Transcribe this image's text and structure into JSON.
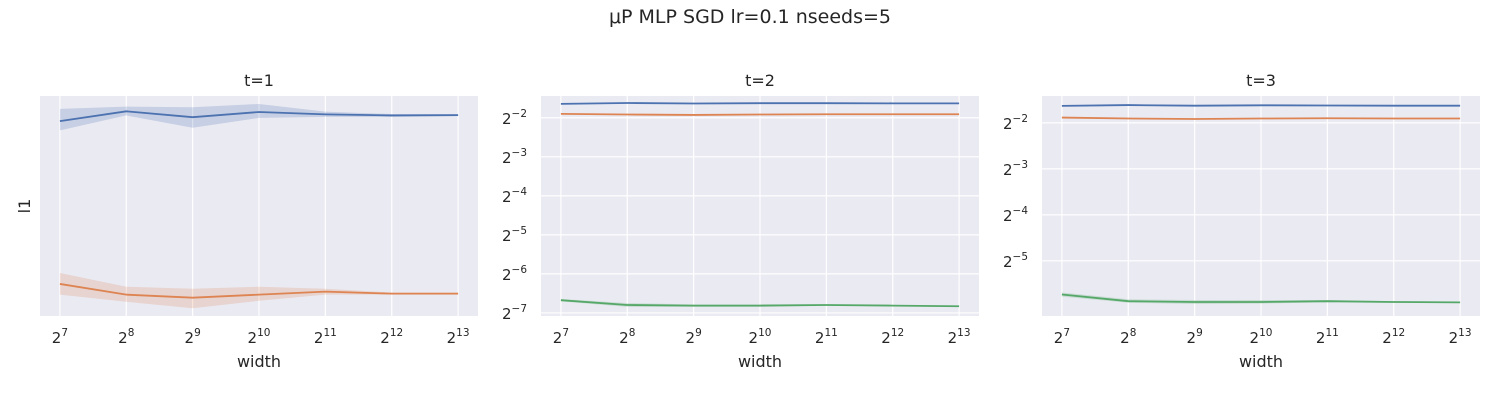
{
  "figure": {
    "title": "μP MLP SGD lr=0.1 nseeds=5"
  },
  "theme": {
    "panel_bg": "#eaeaf2",
    "grid": "#ffffff",
    "text": "#262626",
    "series_colors": [
      "#4c72b0",
      "#dd8452",
      "#55a868"
    ]
  },
  "chart_data": [
    {
      "type": "line",
      "title": "t=1",
      "xlabel": "width",
      "ylabel": "l1",
      "x_scale": "log2",
      "x": [
        128,
        256,
        512,
        1024,
        2048,
        4096,
        8192
      ],
      "x_tick_labels": [
        {
          "base": "2",
          "exp": "7"
        },
        {
          "base": "2",
          "exp": "8"
        },
        {
          "base": "2",
          "exp": "9"
        },
        {
          "base": "2",
          "exp": "10"
        },
        {
          "base": "2",
          "exp": "11"
        },
        {
          "base": "2",
          "exp": "12"
        },
        {
          "base": "2",
          "exp": "13"
        }
      ],
      "y_scale": "log2",
      "ylim": [
        0.0149,
        0.0545
      ],
      "y_tick_labels": [],
      "grid": true,
      "series": [
        {
          "values": [
            0.047,
            0.0498,
            0.0481,
            0.0496,
            0.0489,
            0.0486,
            0.0487
          ],
          "lower": [
            0.0445,
            0.0486,
            0.0452,
            0.0479,
            0.0482,
            0.0482,
            0.0484
          ],
          "upper": [
            0.0505,
            0.0512,
            0.051,
            0.052,
            0.0497,
            0.049,
            0.049
          ]
        },
        {
          "values": [
            0.018,
            0.0169,
            0.0166,
            0.0169,
            0.0172,
            0.017,
            0.017
          ],
          "lower": [
            0.0169,
            0.0162,
            0.0156,
            0.0163,
            0.0169,
            0.0169,
            0.0169
          ],
          "upper": [
            0.0192,
            0.0177,
            0.0175,
            0.0177,
            0.0175,
            0.0171,
            0.0171
          ]
        }
      ]
    },
    {
      "type": "line",
      "title": "t=2",
      "xlabel": "width",
      "ylabel": "",
      "x_scale": "log2",
      "x": [
        128,
        256,
        512,
        1024,
        2048,
        4096,
        8192
      ],
      "x_tick_labels": [
        {
          "base": "2",
          "exp": "7"
        },
        {
          "base": "2",
          "exp": "8"
        },
        {
          "base": "2",
          "exp": "9"
        },
        {
          "base": "2",
          "exp": "10"
        },
        {
          "base": "2",
          "exp": "11"
        },
        {
          "base": "2",
          "exp": "12"
        },
        {
          "base": "2",
          "exp": "13"
        }
      ],
      "y_scale": "log2",
      "ylim": [
        0.0074,
        0.368
      ],
      "y_ticks": [
        0.25,
        0.125,
        0.0625,
        0.03125,
        0.015625,
        0.0078125
      ],
      "y_tick_labels": [
        {
          "base": "2",
          "exp": "−2"
        },
        {
          "base": "2",
          "exp": "−3"
        },
        {
          "base": "2",
          "exp": "−4"
        },
        {
          "base": "2",
          "exp": "−5"
        },
        {
          "base": "2",
          "exp": "−6"
        },
        {
          "base": "2",
          "exp": "−7"
        }
      ],
      "grid": true,
      "series": [
        {
          "values": [
            0.32,
            0.325,
            0.322,
            0.324,
            0.324,
            0.323,
            0.323
          ],
          "lower": [
            0.318,
            0.323,
            0.32,
            0.322,
            0.322,
            0.321,
            0.321
          ],
          "upper": [
            0.322,
            0.327,
            0.324,
            0.326,
            0.326,
            0.325,
            0.325
          ]
        },
        {
          "values": [
            0.268,
            0.265,
            0.263,
            0.265,
            0.266,
            0.266,
            0.266
          ],
          "lower": [
            0.266,
            0.263,
            0.261,
            0.263,
            0.264,
            0.264,
            0.264
          ],
          "upper": [
            0.27,
            0.267,
            0.265,
            0.267,
            0.268,
            0.268,
            0.268
          ]
        },
        {
          "values": [
            0.0098,
            0.009,
            0.0089,
            0.0089,
            0.009,
            0.0089,
            0.0088
          ],
          "lower": [
            0.0096,
            0.0087,
            0.0087,
            0.0087,
            0.0089,
            0.0088,
            0.0087
          ],
          "upper": [
            0.01,
            0.0093,
            0.0091,
            0.0091,
            0.0091,
            0.009,
            0.0089
          ]
        }
      ]
    },
    {
      "type": "line",
      "title": "t=3",
      "xlabel": "width",
      "ylabel": "",
      "x_scale": "log2",
      "x": [
        128,
        256,
        512,
        1024,
        2048,
        4096,
        8192
      ],
      "x_tick_labels": [
        {
          "base": "2",
          "exp": "7"
        },
        {
          "base": "2",
          "exp": "8"
        },
        {
          "base": "2",
          "exp": "9"
        },
        {
          "base": "2",
          "exp": "10"
        },
        {
          "base": "2",
          "exp": "11"
        },
        {
          "base": "2",
          "exp": "12"
        },
        {
          "base": "2",
          "exp": "13"
        }
      ],
      "y_scale": "log2",
      "ylim": [
        0.0136,
        0.375
      ],
      "y_ticks": [
        0.25,
        0.125,
        0.0625,
        0.03125
      ],
      "y_tick_labels": [
        {
          "base": "2",
          "exp": "−2"
        },
        {
          "base": "2",
          "exp": "−3"
        },
        {
          "base": "2",
          "exp": "−4"
        },
        {
          "base": "2",
          "exp": "−5"
        }
      ],
      "grid": true,
      "series": [
        {
          "values": [
            0.323,
            0.327,
            0.324,
            0.326,
            0.325,
            0.324,
            0.324
          ],
          "lower": [
            0.321,
            0.325,
            0.322,
            0.324,
            0.323,
            0.322,
            0.322
          ],
          "upper": [
            0.325,
            0.329,
            0.326,
            0.328,
            0.327,
            0.326,
            0.326
          ]
        },
        {
          "values": [
            0.271,
            0.267,
            0.265,
            0.267,
            0.268,
            0.267,
            0.267
          ],
          "lower": [
            0.269,
            0.265,
            0.263,
            0.265,
            0.266,
            0.265,
            0.265
          ],
          "upper": [
            0.273,
            0.269,
            0.267,
            0.269,
            0.27,
            0.269,
            0.269
          ]
        },
        {
          "values": [
            0.0188,
            0.017,
            0.0168,
            0.0168,
            0.017,
            0.0168,
            0.0167
          ],
          "lower": [
            0.0182,
            0.0166,
            0.0163,
            0.0164,
            0.0167,
            0.0166,
            0.0165
          ],
          "upper": [
            0.0194,
            0.0175,
            0.0173,
            0.0173,
            0.0173,
            0.017,
            0.0169
          ]
        }
      ]
    }
  ]
}
